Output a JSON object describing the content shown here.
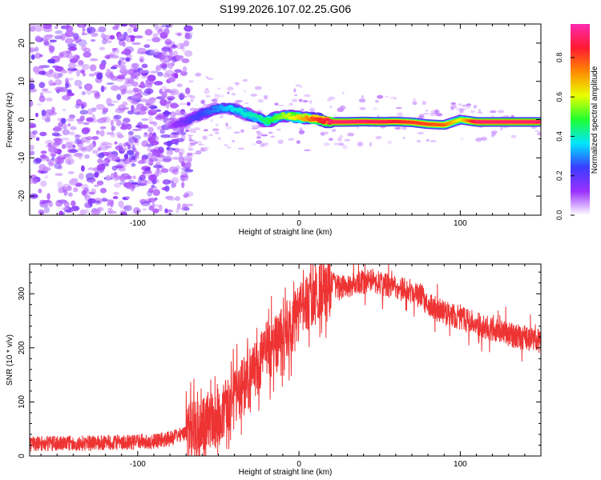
{
  "chart_data": [
    {
      "type": "heatmap",
      "title": "S199.2026.107.02.25.G06",
      "xlabel": "Height of straight line (km)",
      "ylabel": "Frequency (Hz)",
      "xlim": [
        -167,
        150
      ],
      "ylim": [
        -25,
        25
      ],
      "xticks": [
        -100,
        0,
        100
      ],
      "yticks": [
        -20,
        -10,
        0,
        10,
        20
      ],
      "colorbar": {
        "label": "Normalized spectral amplitude",
        "range": [
          0.0,
          0.97
        ],
        "ticks": [
          0.0,
          0.2,
          0.4,
          0.6,
          0.8
        ],
        "colormap": [
          "#ffffff",
          "#9a30ff",
          "#3a3dff",
          "#00e5ff",
          "#20ff30",
          "#e8ff00",
          "#ff8a00",
          "#ff1a30",
          "#ff2ab0"
        ]
      },
      "ridge": {
        "x": [
          -80,
          -70,
          -60,
          -50,
          -40,
          -30,
          -20,
          -10,
          0,
          10,
          20,
          30,
          40,
          50,
          60,
          70,
          80,
          90,
          100,
          110,
          120,
          130,
          150
        ],
        "y": [
          -1.5,
          -0.5,
          1.5,
          3.0,
          2.8,
          1.0,
          -0.5,
          1.2,
          0.5,
          0.2,
          -0.6,
          -0.6,
          -0.5,
          -0.6,
          -0.5,
          -0.7,
          -1.2,
          -1.4,
          0.0,
          -0.6,
          -0.6,
          -0.6,
          -0.6
        ],
        "amplitude": [
          0.1,
          0.18,
          0.25,
          0.3,
          0.38,
          0.4,
          0.45,
          0.55,
          0.65,
          0.8,
          0.9,
          0.9,
          0.9,
          0.88,
          0.85,
          0.82,
          0.8,
          0.78,
          0.6,
          0.9,
          0.9,
          0.9,
          0.9
        ]
      },
      "noise_region_x": [
        -167,
        -68
      ]
    },
    {
      "type": "line",
      "title": "",
      "xlabel": "Height of straight line (km)",
      "ylabel": "SNR (10 * v/v)",
      "xlim": [
        -167,
        150
      ],
      "ylim": [
        0,
        355
      ],
      "xticks": [
        -100,
        0,
        100
      ],
      "yticks": [
        0,
        100,
        200,
        300
      ],
      "color": "#ee3333",
      "series": [
        {
          "name": "SNR",
          "x": [
            -167,
            -150,
            -130,
            -110,
            -90,
            -80,
            -70,
            -60,
            -50,
            -45,
            -40,
            -35,
            -30,
            -25,
            -20,
            -15,
            -10,
            -5,
            0,
            5,
            10,
            15,
            20,
            25,
            30,
            40,
            45,
            50,
            60,
            70,
            75,
            80,
            90,
            100,
            110,
            120,
            130,
            140,
            150
          ],
          "values": [
            22,
            23,
            24,
            25,
            27,
            32,
            42,
            55,
            70,
            95,
            110,
            125,
            145,
            170,
            195,
            205,
            225,
            240,
            265,
            280,
            300,
            310,
            320,
            310,
            315,
            322,
            325,
            320,
            310,
            305,
            300,
            280,
            265,
            255,
            245,
            235,
            225,
            218,
            212
          ]
        }
      ]
    }
  ]
}
